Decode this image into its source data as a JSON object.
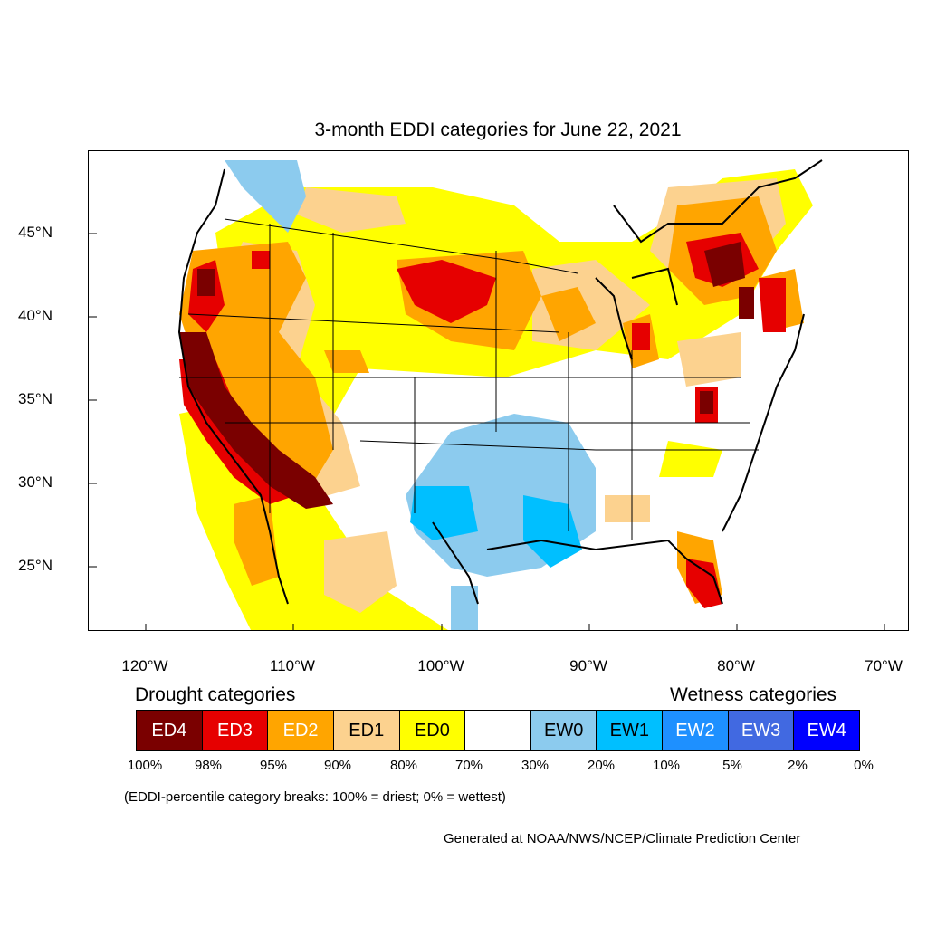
{
  "title": "3-month EDDI categories for June 22, 2021",
  "axes": {
    "lat_labels": [
      "45°N",
      "40°N",
      "35°N",
      "30°N",
      "25°N"
    ],
    "lon_labels": [
      "120°W",
      "110°W",
      "100°W",
      "90°W",
      "80°W",
      "70°W"
    ]
  },
  "legend": {
    "drought_heading": "Drought categories",
    "wetness_heading": "Wetness categories",
    "categories": [
      {
        "label": "ED4",
        "color": "#7a0000",
        "text_color": "#ffffff"
      },
      {
        "label": "ED3",
        "color": "#e60000",
        "text_color": "#ffffff"
      },
      {
        "label": "ED2",
        "color": "#ffa500",
        "text_color": "#ffffff"
      },
      {
        "label": "ED1",
        "color": "#fcd28f",
        "text_color": "#000000"
      },
      {
        "label": "ED0",
        "color": "#ffff00",
        "text_color": "#000000"
      },
      {
        "label": "",
        "color": "#ffffff",
        "text_color": "#000000"
      },
      {
        "label": "EW0",
        "color": "#8ccbee",
        "text_color": "#000000"
      },
      {
        "label": "EW1",
        "color": "#00bfff",
        "text_color": "#000000"
      },
      {
        "label": "EW2",
        "color": "#1e90ff",
        "text_color": "#ffffff"
      },
      {
        "label": "EW3",
        "color": "#4169e1",
        "text_color": "#ffffff"
      },
      {
        "label": "EW4",
        "color": "#0000ff",
        "text_color": "#ffffff"
      }
    ],
    "breaks": [
      "100%",
      "98%",
      "95%",
      "90%",
      "80%",
      "70%",
      "30%",
      "20%",
      "10%",
      "5%",
      "2%",
      "0%"
    ]
  },
  "note": "(EDDI-percentile category breaks: 100% = driest; 0% = wettest)",
  "credit": "Generated at NOAA/NWS/NCEP/Climate Prediction Center"
}
